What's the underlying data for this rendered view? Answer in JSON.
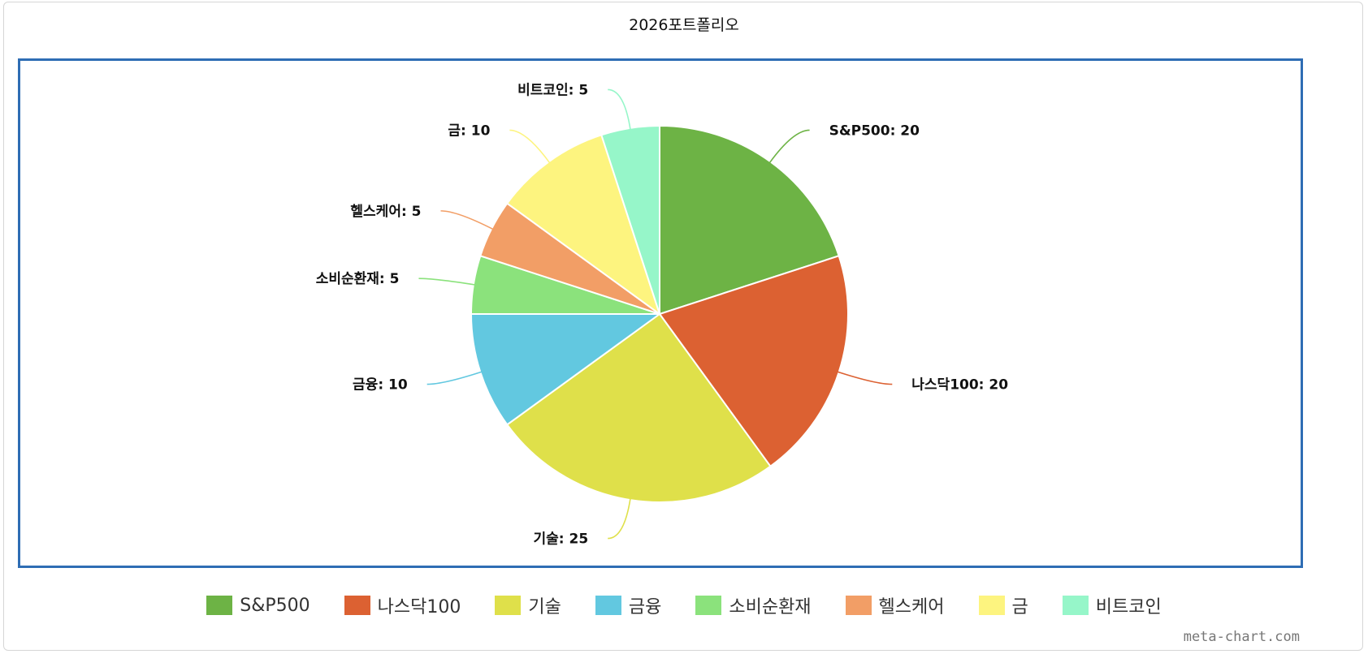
{
  "chart_data": {
    "type": "pie",
    "title": "2026포트폴리오",
    "categories": [
      "S&P500",
      "나스닥100",
      "기술",
      "금융",
      "소비순환재",
      "헬스케어",
      "금",
      "비트코인"
    ],
    "values": [
      20,
      20,
      25,
      10,
      5,
      5,
      10,
      5
    ],
    "colors": [
      "#6db345",
      "#dc6132",
      "#dfe04a",
      "#62c8e0",
      "#8be27c",
      "#f29e66",
      "#fdf47f",
      "#96f6c9"
    ],
    "legend_position": "bottom",
    "slice_labels": [
      "S&P500: 20",
      "나스닥100: 20",
      "기술: 25",
      "금융: 10",
      "소비순환재: 5",
      "헬스케어: 5",
      "금: 10",
      "비트코인: 5"
    ]
  },
  "watermark": "meta-chart.com"
}
